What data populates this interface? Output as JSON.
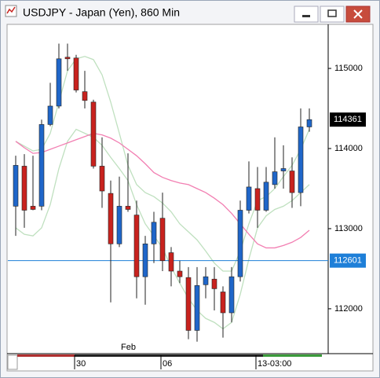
{
  "chart_data": {
    "type": "candlestick",
    "title": "USDJPY - Japan (Yen), 860 Min",
    "categories": [
      null,
      null,
      null,
      null,
      null,
      null,
      null,
      "30",
      null,
      null,
      null,
      null,
      null,
      null,
      null,
      null,
      null,
      "06",
      null,
      null,
      null,
      null,
      null,
      null,
      null,
      null,
      null,
      null,
      "13-03:00",
      null,
      null,
      null,
      null,
      null,
      null
    ],
    "month_labels": [
      null,
      null,
      null,
      null,
      null,
      null,
      null,
      null,
      null,
      null,
      null,
      null,
      "Feb",
      null,
      null,
      null,
      null,
      null,
      null,
      null,
      null,
      null,
      null,
      null,
      null,
      null,
      null,
      null,
      null,
      null,
      null,
      null,
      null,
      null,
      null
    ],
    "open": [
      113280,
      113780,
      113280,
      113280,
      114300,
      114530,
      115140,
      115130,
      114710,
      114580,
      113780,
      113440,
      112810,
      113280,
      113170,
      112400,
      112810,
      113130,
      112700,
      112470,
      112390,
      111730,
      112300,
      112370,
      112210,
      111950,
      112400,
      113230,
      113500,
      113230,
      113550,
      113720,
      113720,
      113450,
      114270
    ],
    "high": [
      113910,
      113930,
      113910,
      114360,
      114820,
      115310,
      115310,
      115170,
      114970,
      114610,
      114140,
      113600,
      113650,
      113940,
      113350,
      112910,
      113210,
      113450,
      112770,
      112600,
      112520,
      112520,
      112520,
      112520,
      112280,
      112520,
      113350,
      113840,
      113770,
      113770,
      114140,
      114040,
      113890,
      114500,
      114500
    ],
    "low": [
      112910,
      113010,
      113230,
      113230,
      114280,
      114500,
      114970,
      114700,
      114500,
      113750,
      113260,
      112080,
      112770,
      113210,
      112130,
      112050,
      112570,
      112470,
      112280,
      112320,
      111620,
      111590,
      112130,
      111980,
      111640,
      111830,
      112340,
      113190,
      113010,
      113210,
      113500,
      113500,
      113260,
      113280,
      114210
    ],
    "close": [
      113790,
      113230,
      113240,
      114300,
      114530,
      115120,
      115120,
      114730,
      114600,
      113780,
      113470,
      112810,
      113280,
      113240,
      112400,
      112810,
      113080,
      112600,
      112470,
      112400,
      111730,
      112290,
      112400,
      112250,
      111950,
      112400,
      113230,
      113520,
      113230,
      113580,
      113710,
      113750,
      113450,
      114270,
      114361
    ],
    "up_color": "#1f66c9",
    "down_color": "#c8221e",
    "overlays": [
      {
        "color": "#bfe0bf",
        "values": [
          114090,
          114030,
          113970,
          113990,
          114190,
          114580,
          114970,
          115120,
          115150,
          115110,
          114920,
          114580,
          114190,
          113790,
          113550,
          113450,
          113400,
          113320,
          113210,
          113060,
          112960,
          112860,
          112720,
          112570,
          112470,
          112470,
          112720,
          113060,
          113350,
          113400,
          113500,
          113650,
          113790,
          113990,
          114240
        ]
      },
      {
        "color": "#bfe0bf",
        "values": [
          113010,
          112930,
          112910,
          113010,
          113300,
          113750,
          114090,
          114240,
          114190,
          114140,
          114040,
          113890,
          113750,
          113600,
          113300,
          113060,
          112910,
          112760,
          112520,
          112320,
          112130,
          111980,
          111880,
          111830,
          111750,
          111830,
          112180,
          112620,
          113010,
          113160,
          113240,
          113280,
          113350,
          113450,
          113550
        ]
      },
      {
        "color": "#f27fb2",
        "values": [
          114090,
          114010,
          113940,
          113950,
          113990,
          114030,
          114070,
          114110,
          114150,
          114190,
          114170,
          114130,
          114070,
          113990,
          113910,
          113810,
          113700,
          113640,
          113600,
          113570,
          113550,
          113500,
          113450,
          113380,
          113300,
          113190,
          113060,
          112930,
          112810,
          112760,
          112760,
          112790,
          112830,
          112890,
          112980
        ]
      }
    ],
    "ylim": [
      111440,
      115540
    ],
    "yticks": [
      112000,
      113000,
      114000,
      115000
    ],
    "last_price": 114361,
    "hline": {
      "value": 112601,
      "color": "#1e7fd8"
    }
  }
}
